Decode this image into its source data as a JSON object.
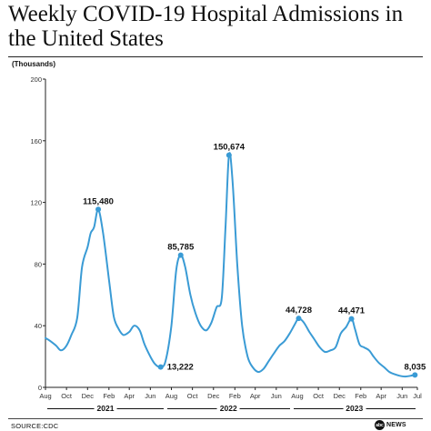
{
  "header": {
    "title": "Weekly COVID-19 Hospital Admissions in the United States",
    "units": "(Thousands)"
  },
  "footer": {
    "source": "SOURCE:CDC",
    "logo_mark": "abc",
    "logo_text": "NEWS"
  },
  "chart_data": {
    "type": "line",
    "title": "Weekly COVID-19 Hospital Admissions in the United States",
    "ylabel": "(Thousands)",
    "xlabel": "",
    "ylim": [
      0,
      200
    ],
    "yticks": [
      0,
      40,
      80,
      120,
      160,
      200
    ],
    "xlim": [
      "2020-08-01",
      "2023-07-15"
    ],
    "xticks": [
      {
        "date": "2020-08-01",
        "label": "Aug"
      },
      {
        "date": "2020-10-01",
        "label": "Oct"
      },
      {
        "date": "2020-12-01",
        "label": "Dec"
      },
      {
        "date": "2021-02-01",
        "label": "Feb"
      },
      {
        "date": "2021-04-01",
        "label": "Apr"
      },
      {
        "date": "2021-06-01",
        "label": "Jun"
      },
      {
        "date": "2021-08-01",
        "label": "Aug"
      },
      {
        "date": "2021-10-01",
        "label": "Oct"
      },
      {
        "date": "2021-12-01",
        "label": "Dec"
      },
      {
        "date": "2022-02-01",
        "label": "Feb"
      },
      {
        "date": "2022-04-01",
        "label": "Apr"
      },
      {
        "date": "2022-06-01",
        "label": "Jun"
      },
      {
        "date": "2022-08-01",
        "label": "Aug"
      },
      {
        "date": "2022-10-01",
        "label": "Oct"
      },
      {
        "date": "2022-12-01",
        "label": "Dec"
      },
      {
        "date": "2023-02-01",
        "label": "Feb"
      },
      {
        "date": "2023-04-01",
        "label": "Apr"
      },
      {
        "date": "2023-06-01",
        "label": "Jun"
      },
      {
        "date": "2023-07-15",
        "label": "Jul"
      }
    ],
    "year_groups": [
      {
        "label": "2021",
        "start": "2020-08-01",
        "end": "2021-07-15"
      },
      {
        "label": "2022",
        "start": "2021-07-15",
        "end": "2022-07-15"
      },
      {
        "label": "2023",
        "start": "2022-07-15",
        "end": "2023-07-15"
      }
    ],
    "color": "#3a9bd5",
    "grid": false,
    "series": [
      {
        "points": [
          [
            "2020-08-01",
            32
          ],
          [
            "2020-08-15",
            30
          ],
          [
            "2020-09-01",
            27
          ],
          [
            "2020-09-15",
            24
          ],
          [
            "2020-10-01",
            27
          ],
          [
            "2020-10-15",
            34
          ],
          [
            "2020-11-01",
            45
          ],
          [
            "2020-11-15",
            78
          ],
          [
            "2020-12-01",
            91
          ],
          [
            "2020-12-10",
            100
          ],
          [
            "2020-12-20",
            104
          ],
          [
            "2021-01-01",
            115.48
          ],
          [
            "2021-01-15",
            100
          ],
          [
            "2021-02-01",
            70
          ],
          [
            "2021-02-15",
            46
          ],
          [
            "2021-03-01",
            38
          ],
          [
            "2021-03-15",
            34
          ],
          [
            "2021-04-01",
            36
          ],
          [
            "2021-04-15",
            40
          ],
          [
            "2021-05-01",
            37
          ],
          [
            "2021-05-15",
            28
          ],
          [
            "2021-06-01",
            20
          ],
          [
            "2021-06-15",
            15
          ],
          [
            "2021-07-01",
            13.222
          ],
          [
            "2021-07-15",
            17
          ],
          [
            "2021-08-01",
            40
          ],
          [
            "2021-08-15",
            76
          ],
          [
            "2021-08-28",
            85.785
          ],
          [
            "2021-09-10",
            78
          ],
          [
            "2021-09-25",
            60
          ],
          [
            "2021-10-10",
            48
          ],
          [
            "2021-10-25",
            40
          ],
          [
            "2021-11-10",
            37
          ],
          [
            "2021-11-25",
            42
          ],
          [
            "2021-12-10",
            52
          ],
          [
            "2021-12-25",
            58
          ],
          [
            "2022-01-05",
            105
          ],
          [
            "2022-01-15",
            150.674
          ],
          [
            "2022-01-25",
            135
          ],
          [
            "2022-02-08",
            80
          ],
          [
            "2022-02-22",
            40
          ],
          [
            "2022-03-10",
            20
          ],
          [
            "2022-03-25",
            13
          ],
          [
            "2022-04-10",
            10
          ],
          [
            "2022-04-25",
            12
          ],
          [
            "2022-05-10",
            17
          ],
          [
            "2022-05-25",
            22
          ],
          [
            "2022-06-10",
            27
          ],
          [
            "2022-06-25",
            30
          ],
          [
            "2022-07-10",
            35
          ],
          [
            "2022-07-25",
            41
          ],
          [
            "2022-08-05",
            44.728
          ],
          [
            "2022-08-20",
            42
          ],
          [
            "2022-09-05",
            36
          ],
          [
            "2022-09-20",
            31
          ],
          [
            "2022-10-05",
            26
          ],
          [
            "2022-10-20",
            23
          ],
          [
            "2022-11-05",
            24
          ],
          [
            "2022-11-20",
            26
          ],
          [
            "2022-12-05",
            35
          ],
          [
            "2022-12-20",
            39
          ],
          [
            "2023-01-05",
            44.471
          ],
          [
            "2023-01-15",
            38
          ],
          [
            "2023-01-28",
            28
          ],
          [
            "2023-02-10",
            26
          ],
          [
            "2023-02-25",
            24
          ],
          [
            "2023-03-10",
            20
          ],
          [
            "2023-03-25",
            16
          ],
          [
            "2023-04-10",
            13
          ],
          [
            "2023-04-25",
            10
          ],
          [
            "2023-05-10",
            8.5
          ],
          [
            "2023-05-25",
            7.5
          ],
          [
            "2023-06-10",
            7
          ],
          [
            "2023-06-25",
            7.5
          ],
          [
            "2023-07-08",
            8.035
          ]
        ]
      }
    ],
    "annotations": [
      {
        "date": "2021-01-01",
        "value": 115.48,
        "label": "115,480",
        "position": "above"
      },
      {
        "date": "2021-07-01",
        "value": 13.222,
        "label": "13,222",
        "position": "right"
      },
      {
        "date": "2021-08-28",
        "value": 85.785,
        "label": "85,785",
        "position": "above"
      },
      {
        "date": "2022-01-15",
        "value": 150.674,
        "label": "150,674",
        "position": "above"
      },
      {
        "date": "2022-08-05",
        "value": 44.728,
        "label": "44,728",
        "position": "above"
      },
      {
        "date": "2023-01-05",
        "value": 44.471,
        "label": "44,471",
        "position": "above"
      },
      {
        "date": "2023-07-08",
        "value": 8.035,
        "label": "8,035",
        "position": "above"
      }
    ]
  }
}
